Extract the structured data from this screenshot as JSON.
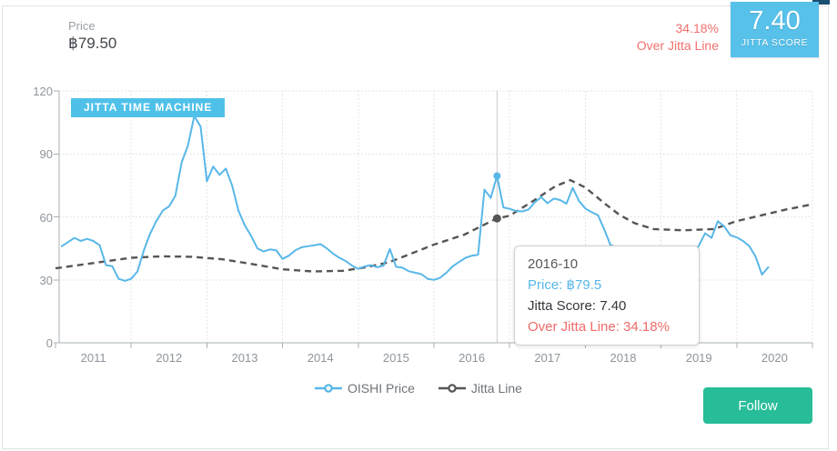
{
  "header": {
    "price_label": "Price",
    "price_value": "฿79.50",
    "over_percent": "34.18%",
    "over_label": "Over Jitta Line",
    "score_value": "7.40",
    "score_label": "JITTA SCORE"
  },
  "badge": "JITTA TIME MACHINE",
  "tooltip": {
    "date": "2016-10",
    "price_line": "Price: ฿79.5",
    "score_line": "Jitta Score: 7.40",
    "over_line": "Over Jitta Line: 34.18%"
  },
  "legend": [
    {
      "label": "OISHI Price",
      "color": "#58b7e8"
    },
    {
      "label": "Jitta Line",
      "color": "#555555"
    }
  ],
  "follow_label": "Follow",
  "colors": {
    "price_line": "#58b7e8",
    "jitta_line": "#555555",
    "badge_bg": "#4fc1e9",
    "score_bg": "#57c1ea",
    "ribbon": "#1b4f72",
    "red": "#f0706d",
    "green": "#27bd98",
    "grid": "#dcdcdc",
    "axis": "#a9b0b6",
    "crosshair": "#cccccc",
    "tick_text": "#8e959b"
  },
  "chart_data": {
    "type": "line",
    "title": "JITTA TIME MACHINE",
    "xlabel": "",
    "ylabel": "",
    "grid": true,
    "legend_position": "bottom",
    "x_axis": {
      "range": [
        2011,
        2021
      ],
      "ticks": [
        2011,
        2012,
        2013,
        2014,
        2015,
        2016,
        2017,
        2018,
        2019,
        2020
      ]
    },
    "y_axis": {
      "range": [
        0,
        120
      ],
      "ticks": [
        0,
        30,
        60,
        90,
        120
      ]
    },
    "series": [
      {
        "name": "OISHI Price",
        "color": "#58b7e8",
        "style": "solid",
        "x_start_label": "2011-01",
        "x_start": 2011.0833,
        "x_step_years": 0.083333,
        "values": [
          46,
          48,
          50,
          48.5,
          49.5,
          48.5,
          46.5,
          37,
          36.5,
          30.5,
          29.5,
          30.5,
          34,
          44,
          52,
          58,
          63,
          65,
          70,
          86,
          94,
          108,
          103,
          77,
          84,
          80,
          83,
          75,
          63,
          56,
          51,
          45,
          43.5,
          44.5,
          44,
          40,
          41.5,
          44,
          45.5,
          46,
          46.5,
          47,
          45,
          42.5,
          40.5,
          39,
          36.8,
          35.2,
          36.4,
          37,
          36,
          36.8,
          44.7,
          36.2,
          35.8,
          34.1,
          33.4,
          32.7,
          30.5,
          30,
          31,
          33.5,
          36.5,
          38.5,
          40.5,
          41.5,
          42,
          73,
          69,
          79.5,
          64.5,
          63.8,
          62.8,
          62.6,
          63.5,
          67,
          69.4,
          66.5,
          68.7,
          68,
          66.3,
          73.8,
          67.5,
          64,
          62.2,
          60.8,
          54,
          46.5,
          45.5,
          45,
          44.5,
          44,
          43,
          42.5,
          41.5,
          40.8,
          40,
          41.3,
          39.2,
          39.3,
          40.6,
          46.4,
          52.2,
          50,
          57.9,
          55.5,
          51.2,
          50.2,
          48.5,
          46,
          41,
          32.5,
          36
        ]
      },
      {
        "name": "Jitta Line",
        "color": "#555555",
        "style": "dashed",
        "points": [
          [
            2011.0,
            35.5
          ],
          [
            2011.5,
            38
          ],
          [
            2012.0,
            40.5
          ],
          [
            2012.4,
            41.2
          ],
          [
            2012.8,
            41
          ],
          [
            2013.2,
            39.8
          ],
          [
            2013.6,
            37.5
          ],
          [
            2014.0,
            35
          ],
          [
            2014.4,
            34
          ],
          [
            2014.8,
            34.3
          ],
          [
            2015.1,
            36
          ],
          [
            2015.4,
            38.3
          ],
          [
            2015.7,
            42.5
          ],
          [
            2016.0,
            46.8
          ],
          [
            2016.4,
            51.5
          ],
          [
            2016.83,
            59.25
          ],
          [
            2017.0,
            60.5
          ],
          [
            2017.35,
            68.5
          ],
          [
            2017.6,
            74.5
          ],
          [
            2017.8,
            77.5
          ],
          [
            2018.0,
            74
          ],
          [
            2018.25,
            66.5
          ],
          [
            2018.45,
            61
          ],
          [
            2018.65,
            57
          ],
          [
            2018.9,
            54.2
          ],
          [
            2019.3,
            53.6
          ],
          [
            2019.7,
            54.2
          ],
          [
            2020.0,
            58
          ],
          [
            2020.3,
            60.5
          ],
          [
            2020.65,
            63.5
          ],
          [
            2021.0,
            66
          ]
        ]
      }
    ],
    "hover": {
      "x": 2016.8333,
      "date": "2016-10",
      "price": 79.5,
      "jitta_score": "7.40",
      "jitta_line_value": 59.25,
      "over_jitta_line": "34.18%"
    }
  }
}
